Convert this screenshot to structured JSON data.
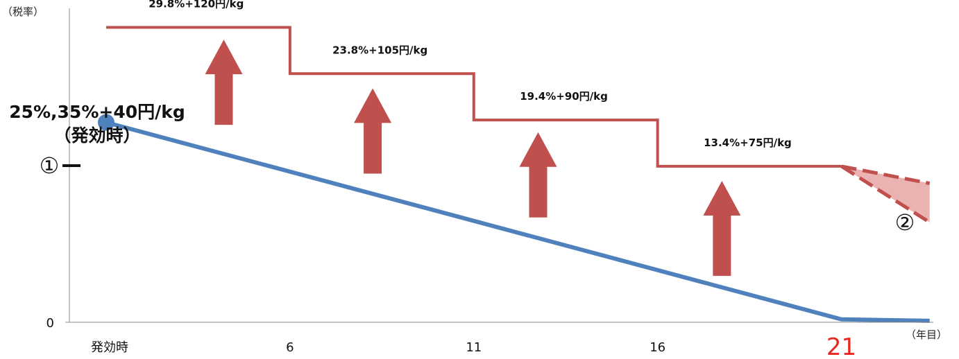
{
  "chart_data": {
    "type": "line",
    "ylabel": "（税率）",
    "xlabel": "（年目）",
    "y_ticks": [
      "0"
    ],
    "x_ticks": [
      {
        "label": "発効時",
        "x": 1,
        "color": "#111111"
      },
      {
        "label": "6",
        "x": 6,
        "color": "#111111"
      },
      {
        "label": "11",
        "x": 11,
        "color": "#111111"
      },
      {
        "label": "16",
        "x": 16,
        "color": "#111111"
      },
      {
        "label": "21",
        "x": 21,
        "color": "#E8251F"
      }
    ],
    "xlim": [
      0,
      23.5
    ],
    "ylim": [
      0,
      60
    ],
    "grid": false,
    "colors": {
      "red": "#C0504D",
      "blue": "#4F81BD",
      "arrow": "#C0504D",
      "band": "#EAB3B1"
    },
    "series": [
      {
        "points": [
          [
            1,
            41
          ],
          [
            21,
            0.6
          ],
          [
            23.4,
            0.3
          ]
        ],
        "color": "#4F81BD",
        "start_marker": true
      },
      {
        "points": [
          [
            1,
            60.5
          ],
          [
            6,
            60.5
          ],
          [
            6,
            51
          ],
          [
            11,
            51
          ],
          [
            11,
            41.5
          ],
          [
            16,
            41.5
          ],
          [
            16,
            32
          ],
          [
            21,
            32
          ]
        ],
        "color": "#C0504D",
        "step_labels": [
          {
            "text": "29.8%+120円/kg",
            "x": 3.45
          },
          {
            "text": "23.8%+105円/kg",
            "x": 8.45
          },
          {
            "text": "19.4%+90円/kg",
            "x": 13.45
          },
          {
            "text": "13.4%+75円/kg",
            "x": 18.45
          }
        ]
      }
    ],
    "future_range": {
      "from": [
        21,
        32
      ],
      "upper": [
        23.4,
        28.5
      ],
      "lower": [
        23.4,
        20.5
      ],
      "dashed": true
    },
    "arrows": [
      {
        "x": 4.2,
        "y_bottom": 40.5,
        "y_top": 58
      },
      {
        "x": 8.25,
        "y_bottom": 30.5,
        "y_top": 48
      },
      {
        "x": 12.75,
        "y_bottom": 21.5,
        "y_top": 39
      },
      {
        "x": 17.75,
        "y_bottom": 9.5,
        "y_top": 29
      }
    ],
    "annotations": {
      "start_rate": "25%,35%+40円/kg",
      "start_note": "（発効時）",
      "marker_1": "①",
      "marker_2": "②"
    }
  }
}
